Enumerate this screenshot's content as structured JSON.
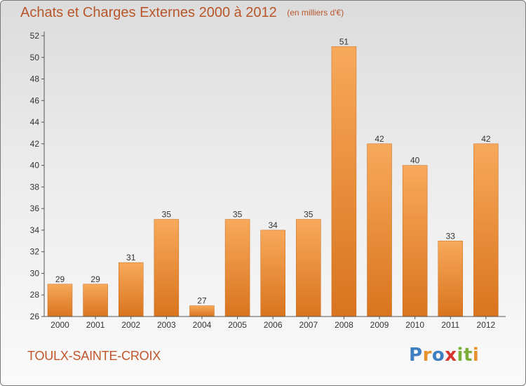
{
  "header": {
    "title": "Achats et Charges Externes 2000 à 2012",
    "subtitle": "(en milliers d'€)"
  },
  "footer": {
    "commune": "TOULX-SAINTE-CROIX",
    "logo_text": "Proxiti",
    "logo_colors": [
      "#3d7fc1",
      "#e8912c",
      "#3d7fc1",
      "#d8342b",
      "#7ab03a",
      "#7ab03a",
      "#e8912c"
    ]
  },
  "colors": {
    "bar_top": "#f7a95a",
    "bar_bottom": "#d9741e",
    "bar_edge": "#c96a1a",
    "accent_text": "#b8562a",
    "axis": "#555555"
  },
  "chart_data": {
    "type": "bar",
    "categories": [
      "2000",
      "2001",
      "2002",
      "2003",
      "2004",
      "2005",
      "2006",
      "2007",
      "2008",
      "2009",
      "2010",
      "2011",
      "2012"
    ],
    "values": [
      29,
      29,
      31,
      35,
      27,
      35,
      34,
      35,
      51,
      42,
      40,
      33,
      42
    ],
    "title": "Achats et Charges Externes 2000 à 2012",
    "ylim": [
      26,
      52
    ],
    "yticks": [
      26,
      28,
      30,
      32,
      34,
      36,
      38,
      40,
      42,
      44,
      46,
      48,
      50,
      52
    ],
    "grid": false
  }
}
